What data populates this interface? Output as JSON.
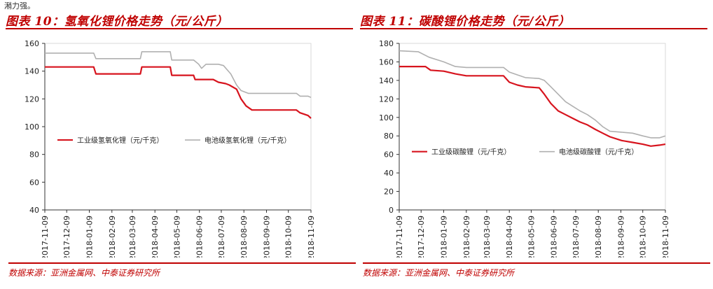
{
  "top_text": "潲力强。",
  "panels": [
    {
      "title": "图表 10：氢氧化锂价格走势（元/公斤）",
      "source": "数据来源：亚洲金属网、中泰证券研究所"
    },
    {
      "title": "图表 11：碳酸锂价格走势（元/公斤）",
      "source": "数据来源：亚洲金属网、中泰证券研究所"
    }
  ],
  "chart_data": [
    {
      "type": "line",
      "title": "图表 10：氢氧化锂价格走势（元/公斤）",
      "x_ticks": [
        "2017-11-09",
        "2017-12-09",
        "2018-01-09",
        "2018-02-09",
        "2018-03-09",
        "2018-04-09",
        "2018-05-09",
        "2018-06-09",
        "2018-07-09",
        "2018-08-09",
        "2018-09-09",
        "2018-10-09",
        "2018-11-09"
      ],
      "ylim": [
        40,
        160
      ],
      "y_ticks": [
        40,
        60,
        80,
        100,
        120,
        140,
        160
      ],
      "legend_placement": "middle",
      "series": [
        {
          "name": "工业级氢氧化锂（元/千克）",
          "color": "#d7141e",
          "x": [
            "2017-11-09",
            "2018-01-15",
            "2018-01-18",
            "2018-03-20",
            "2018-03-22",
            "2018-04-30",
            "2018-05-02",
            "2018-06-01",
            "2018-06-03",
            "2018-06-28",
            "2018-07-05",
            "2018-07-15",
            "2018-07-20",
            "2018-07-30",
            "2018-08-05",
            "2018-08-12",
            "2018-08-20",
            "2018-10-20",
            "2018-10-25",
            "2018-11-05",
            "2018-11-09"
          ],
          "values": [
            143,
            143,
            138,
            138,
            143,
            143,
            137,
            137,
            134,
            134,
            132,
            131,
            130,
            127,
            120,
            115,
            112,
            112,
            110,
            108,
            106
          ]
        },
        {
          "name": "电池级氢氧化锂（元/千克）",
          "color": "#b0b0b0",
          "x": [
            "2017-11-09",
            "2018-01-15",
            "2018-01-18",
            "2018-03-20",
            "2018-03-22",
            "2018-04-30",
            "2018-05-02",
            "2018-06-01",
            "2018-06-08",
            "2018-06-12",
            "2018-06-18",
            "2018-07-05",
            "2018-07-12",
            "2018-07-22",
            "2018-07-30",
            "2018-08-05",
            "2018-08-15",
            "2018-10-20",
            "2018-10-25",
            "2018-11-05",
            "2018-11-09"
          ],
          "values": [
            153,
            153,
            149,
            149,
            154,
            154,
            148,
            148,
            145,
            142,
            145,
            145,
            144,
            138,
            130,
            126,
            124,
            124,
            122,
            122,
            121
          ]
        }
      ]
    },
    {
      "type": "line",
      "title": "图表 11：碳酸锂价格走势（元/公斤）",
      "x_ticks": [
        "2017-11-09",
        "2017-12-09",
        "2018-01-09",
        "2018-02-09",
        "2018-03-09",
        "2018-04-09",
        "2018-05-09",
        "2018-06-09",
        "2018-07-09",
        "2018-08-09",
        "2018-09-09",
        "2018-10-09",
        "2018-11-09"
      ],
      "ylim": [
        0,
        180
      ],
      "y_ticks": [
        0,
        20,
        40,
        60,
        80,
        100,
        120,
        140,
        160,
        180
      ],
      "legend_placement": "bottom",
      "series": [
        {
          "name": "工业级碳酸锂（元/千克）",
          "color": "#d7141e",
          "x": [
            "2017-11-09",
            "2017-12-15",
            "2017-12-22",
            "2018-01-09",
            "2018-01-25",
            "2018-02-09",
            "2018-03-09",
            "2018-04-01",
            "2018-04-09",
            "2018-04-20",
            "2018-05-01",
            "2018-05-20",
            "2018-05-27",
            "2018-06-05",
            "2018-06-15",
            "2018-06-25",
            "2018-07-05",
            "2018-07-15",
            "2018-07-25",
            "2018-08-05",
            "2018-08-15",
            "2018-08-25",
            "2018-09-10",
            "2018-09-25",
            "2018-10-09",
            "2018-10-20",
            "2018-11-01",
            "2018-11-09"
          ],
          "values": [
            155,
            155,
            151,
            150,
            147,
            145,
            145,
            145,
            138,
            135,
            133,
            132,
            125,
            115,
            107,
            103,
            99,
            95,
            92,
            87,
            83,
            79,
            75,
            73,
            71,
            69,
            70,
            71
          ]
        },
        {
          "name": "电池级碳酸锂（元/千克）",
          "color": "#b0b0b0",
          "x": [
            "2017-11-09",
            "2017-12-05",
            "2017-12-20",
            "2018-01-09",
            "2018-01-25",
            "2018-02-09",
            "2018-03-09",
            "2018-04-01",
            "2018-04-09",
            "2018-04-20",
            "2018-05-01",
            "2018-05-20",
            "2018-05-27",
            "2018-06-05",
            "2018-06-15",
            "2018-06-25",
            "2018-07-05",
            "2018-07-15",
            "2018-07-25",
            "2018-08-05",
            "2018-08-15",
            "2018-08-25",
            "2018-09-10",
            "2018-09-25",
            "2018-10-09",
            "2018-10-20",
            "2018-11-01",
            "2018-11-09"
          ],
          "values": [
            172,
            171,
            165,
            160,
            155,
            154,
            154,
            154,
            149,
            146,
            143,
            142,
            140,
            133,
            125,
            117,
            112,
            107,
            103,
            97,
            90,
            85,
            84,
            83,
            80,
            78,
            78,
            80
          ]
        }
      ]
    }
  ]
}
